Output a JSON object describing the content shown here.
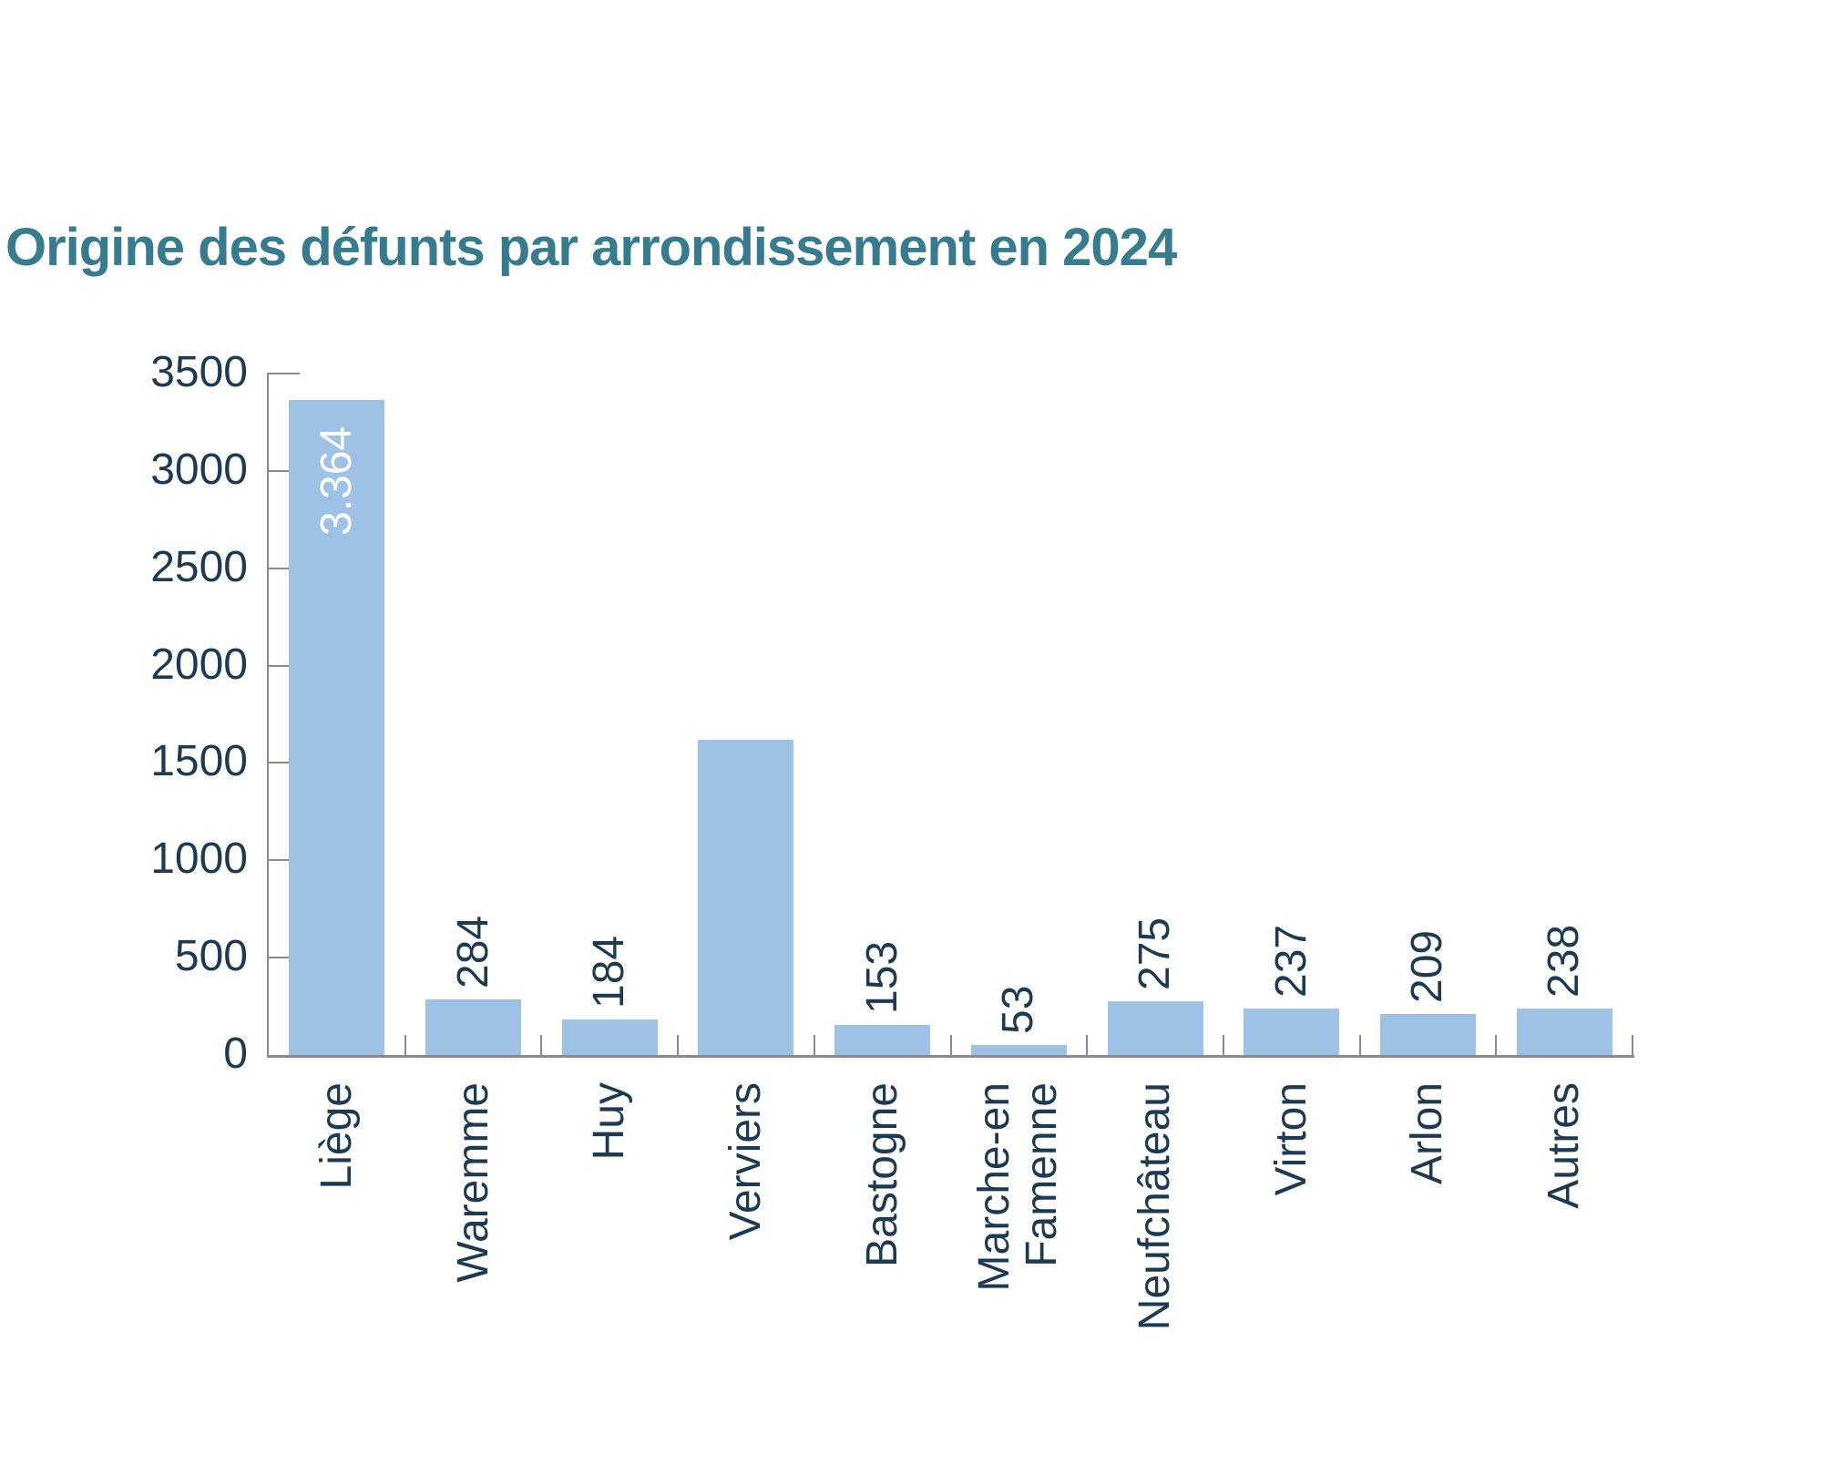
{
  "title": {
    "text": "Origine des défunts par arrondissement en 2024",
    "color": "#377B8F"
  },
  "chart_data": {
    "type": "bar",
    "title": "Origine des défunts par arrondissement en 2024",
    "categories": [
      "Liège",
      "Waremme",
      "Huy",
      "Verviers",
      "Bastogne",
      "Marche-en\nFamenne",
      "Neufchâteau",
      "Virton",
      "Arlon",
      "Autres"
    ],
    "values": [
      3364,
      284,
      184,
      1620,
      153,
      53,
      275,
      237,
      209,
      238
    ],
    "bar_labels": [
      "3.364",
      "284",
      "184",
      "",
      "153",
      "53",
      "275",
      "237",
      "209",
      "238"
    ],
    "bar_label_placement": [
      "inside",
      "above",
      "above",
      "none",
      "above",
      "above",
      "above",
      "above",
      "above",
      "above"
    ],
    "ytick_labels": [
      "0",
      "500",
      "1000",
      "1500",
      "2000",
      "2500",
      "3000",
      "3500"
    ],
    "ylim": [
      0,
      3500
    ],
    "ytick_step": 500,
    "grid": false,
    "legend": null,
    "xlabel": "",
    "ylabel": "",
    "colors": {
      "bar": "#9DC2E6",
      "label": "#1C3A52",
      "inside_label": "#FFFFFF",
      "axis": "#8A8A8A",
      "title": "#377B8F"
    }
  }
}
